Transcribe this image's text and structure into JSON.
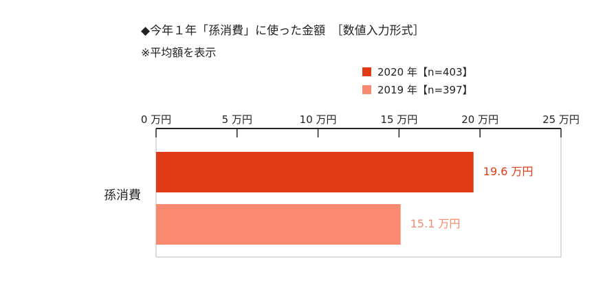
{
  "title": "◆今年１年「孫消費」に使った金額　［数値入力形式］",
  "subtitle": "※平均額を表示",
  "colors": {
    "series_2020": "#e03a17",
    "series_2019": "#f98a70",
    "axis": "#222222",
    "frame": "#bbbbbb"
  },
  "chart_data": {
    "type": "bar",
    "orientation": "horizontal",
    "categories": [
      "孫消費"
    ],
    "series": [
      {
        "name": "2020 年【n=403】",
        "values": [
          19.6
        ],
        "label": "19.6 万円"
      },
      {
        "name": "2019 年【n=397】",
        "values": [
          15.1
        ],
        "label": "15.1 万円"
      }
    ],
    "xlim": [
      0,
      25
    ],
    "ticks": [
      {
        "value": 0,
        "label": "0 万円"
      },
      {
        "value": 5,
        "label": "5 万円"
      },
      {
        "value": 10,
        "label": "10 万円"
      },
      {
        "value": 15,
        "label": "15 万円"
      },
      {
        "value": 20,
        "label": "20 万円"
      },
      {
        "value": 25,
        "label": "25 万円"
      }
    ],
    "axis_position": "top",
    "legend_position": "top-right",
    "grid": false
  }
}
